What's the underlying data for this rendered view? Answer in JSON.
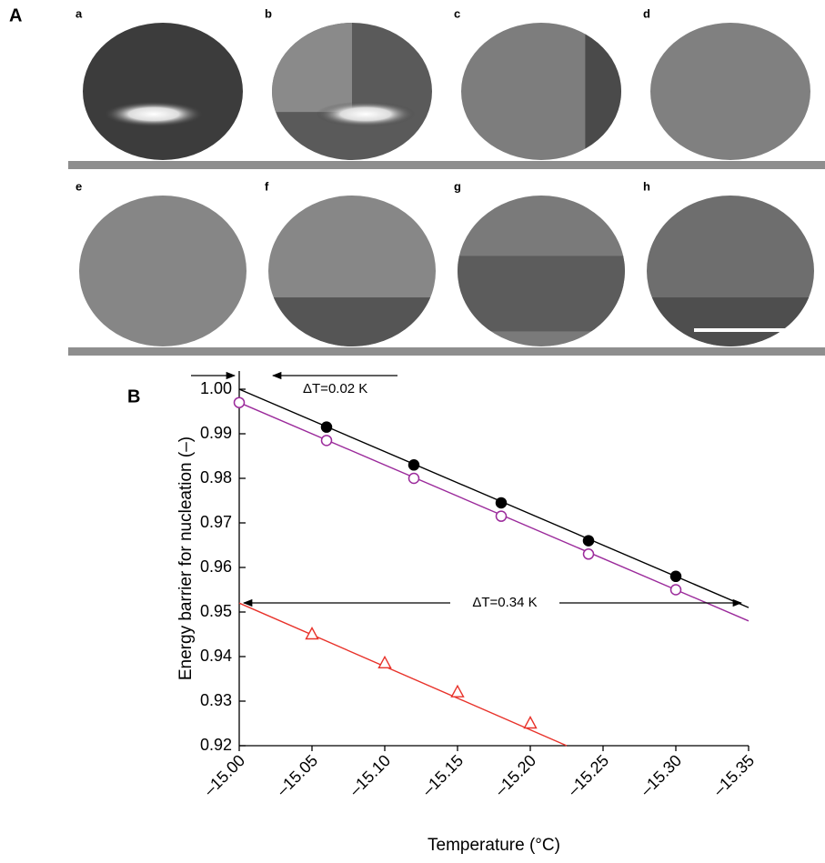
{
  "panel_a": {
    "label": "A",
    "images": [
      "a",
      "b",
      "c",
      "d",
      "e",
      "f",
      "g",
      "h"
    ]
  },
  "chart_data": {
    "type": "line",
    "panel_label": "B",
    "x_label": "Temperature (°C)",
    "y_label": "Energy barrier for nucleation (–)",
    "xlim": [
      -15.0,
      -15.35
    ],
    "ylim": [
      0.92,
      1.0
    ],
    "xticks": [
      {
        "value": -15.0,
        "label": "–15.00"
      },
      {
        "value": -15.05,
        "label": "–15.05"
      },
      {
        "value": -15.1,
        "label": "–15.10"
      },
      {
        "value": -15.15,
        "label": "–15.15"
      },
      {
        "value": -15.2,
        "label": "–15.20"
      },
      {
        "value": -15.25,
        "label": "–15.25"
      },
      {
        "value": -15.3,
        "label": "–15.30"
      },
      {
        "value": -15.35,
        "label": "–15.35"
      }
    ],
    "yticks": [
      0.92,
      0.93,
      0.94,
      0.95,
      0.96,
      0.97,
      0.98,
      0.99,
      {
        "value": 1.0,
        "label": "1.00"
      }
    ],
    "series": [
      {
        "color": "#000000",
        "marker": "filled-circle",
        "x": [
          -15.06,
          -15.12,
          -15.18,
          -15.24,
          -15.3
        ],
        "values": [
          0.9915,
          0.983,
          0.9745,
          0.966,
          0.958
        ]
      },
      {
        "color": "#9b2a9b",
        "marker": "open-circle",
        "x": [
          -15.0,
          -15.06,
          -15.12,
          -15.18,
          -15.24,
          -15.3
        ],
        "values": [
          0.997,
          0.9885,
          0.98,
          0.9715,
          0.963,
          0.955
        ]
      },
      {
        "color": "#e8322a",
        "marker": "open-triangle",
        "x": [
          -15.05,
          -15.1,
          -15.15,
          -15.2
        ],
        "values": [
          0.945,
          0.9385,
          0.932,
          0.925
        ]
      }
    ],
    "fit_lines": [
      {
        "color": "#000000",
        "x": [
          -15.0,
          -15.35
        ],
        "values": [
          1.0,
          0.951
        ]
      },
      {
        "color": "#9b2a9b",
        "x": [
          -15.0,
          -15.35
        ],
        "values": [
          0.997,
          0.948
        ]
      },
      {
        "color": "#e8322a",
        "x": [
          -15.0,
          -15.225
        ],
        "values": [
          0.952,
          0.92
        ]
      }
    ],
    "annotations": [
      "ΔT=0.02 K",
      "ΔT=0.34 K"
    ]
  }
}
